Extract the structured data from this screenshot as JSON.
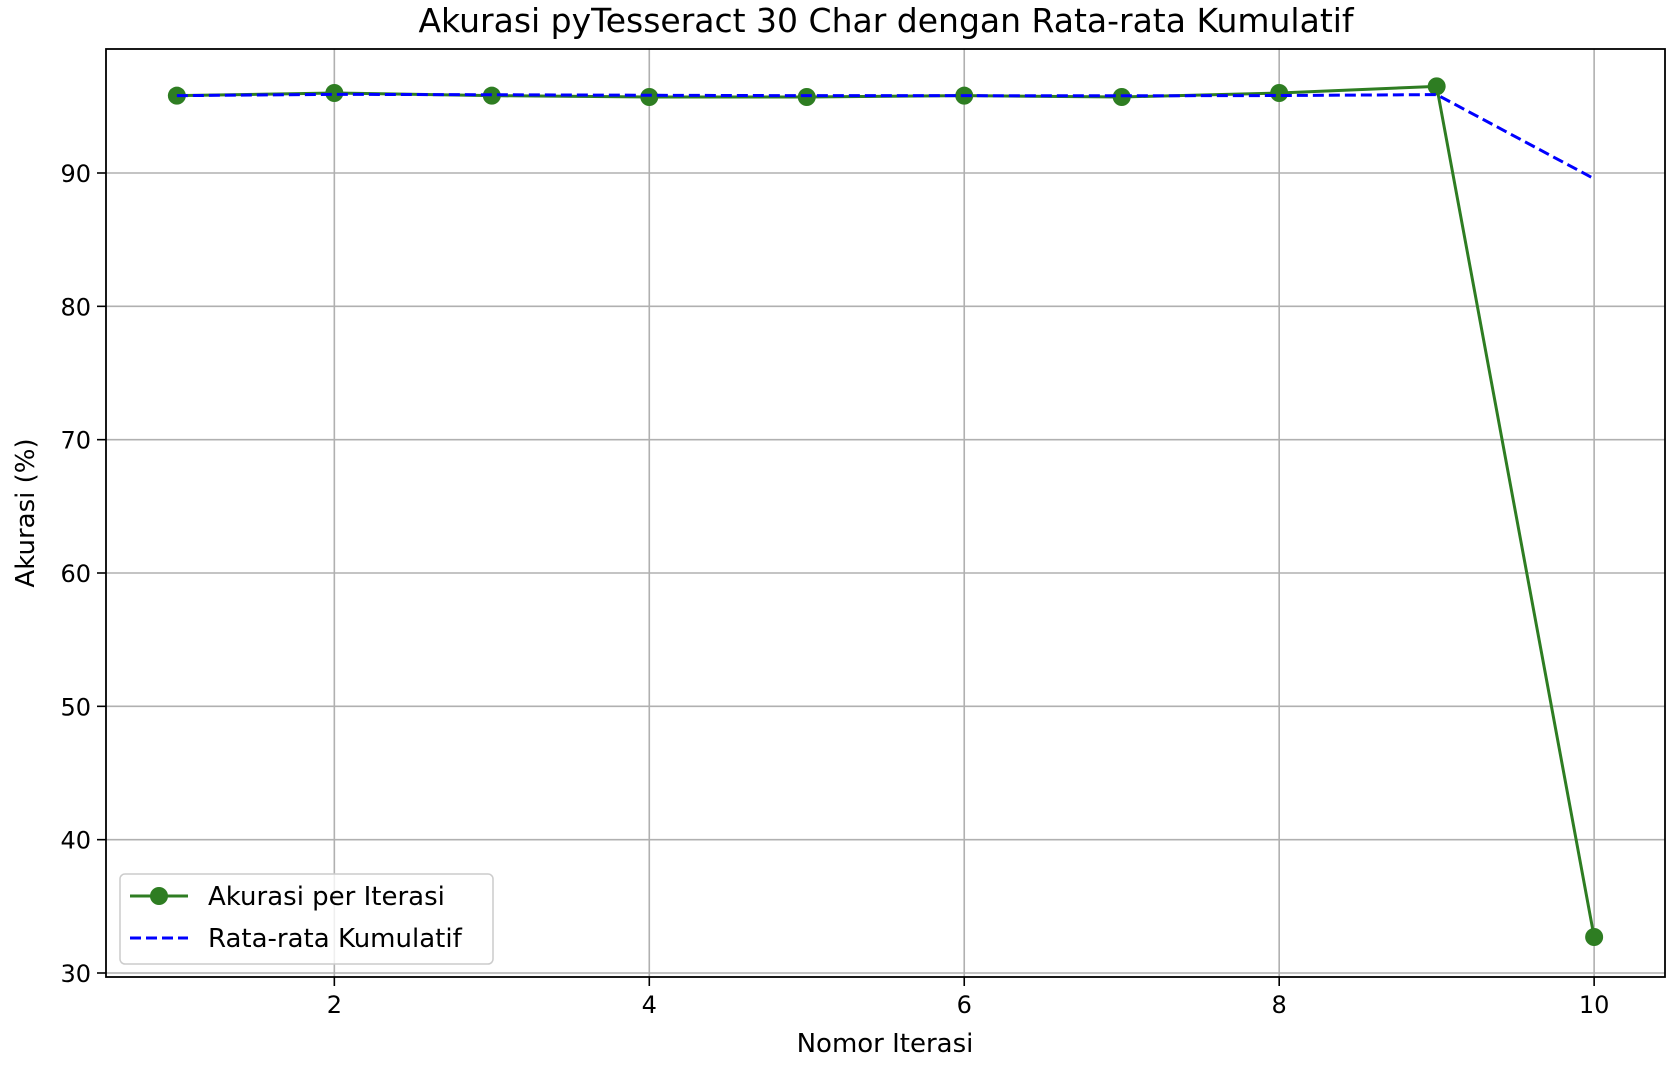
{
  "chart_data": {
    "type": "line",
    "title": "Akurasi pyTesseract 30 Char dengan Rata-rata Kumulatif",
    "xlabel": "Nomor Iterasi",
    "ylabel": "Akurasi (%)",
    "x": [
      1,
      2,
      3,
      4,
      5,
      6,
      7,
      8,
      9,
      10
    ],
    "xlim": [
      0.55,
      10.45
    ],
    "ylim": [
      29.7,
      99.3
    ],
    "xticks": [
      2,
      4,
      6,
      8,
      10
    ],
    "yticks": [
      30,
      40,
      50,
      60,
      70,
      80,
      90
    ],
    "xtick_labels": [
      "2",
      "4",
      "6",
      "8",
      "10"
    ],
    "ytick_labels": [
      "30",
      "40",
      "50",
      "60",
      "70",
      "80",
      "90"
    ],
    "grid": true,
    "legend_position": "lower-left",
    "series": [
      {
        "name": "Akurasi per Iterasi",
        "style": "solid",
        "marker": "circle",
        "color": "#2e7d22",
        "values": [
          95.8,
          96.0,
          95.8,
          95.7,
          95.7,
          95.8,
          95.7,
          96.0,
          96.5,
          32.7
        ]
      },
      {
        "name": "Rata-rata Kumulatif",
        "style": "dashed",
        "marker": "none",
        "color": "#0000ff",
        "values": [
          95.8,
          95.9,
          95.87,
          95.83,
          95.8,
          95.8,
          95.79,
          95.81,
          95.88,
          89.57
        ]
      }
    ]
  }
}
